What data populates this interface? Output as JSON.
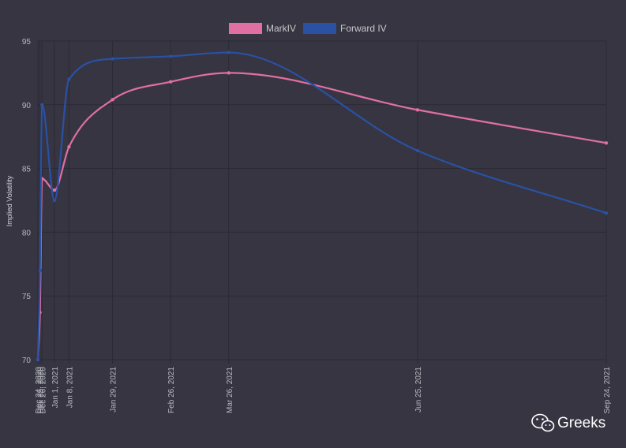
{
  "chart_data": {
    "type": "line",
    "title": "",
    "xlabel": "",
    "ylabel": "Implied Volatility",
    "ylim": [
      70,
      95
    ],
    "yticks": [
      70,
      75,
      80,
      85,
      90,
      95
    ],
    "grid": true,
    "legend_position": "top-center",
    "x": [
      "Dec 24, 2020",
      "Dec 25, 2020",
      "Dec 26, 2020",
      "Jan 1, 2021",
      "Jan 8, 2021",
      "Jan 29, 2021",
      "Feb 26, 2021",
      "Mar 26, 2021",
      "Jun 25, 2021",
      "Sep 24, 2021"
    ],
    "series": [
      {
        "name": "MarkIV",
        "color": "#e06fa4",
        "values": [
          70.0,
          73.7,
          84.2,
          83.3,
          86.7,
          90.4,
          91.8,
          92.5,
          89.6,
          87.0
        ]
      },
      {
        "name": "Forward IV",
        "color": "#2a51a4",
        "values": [
          70.0,
          77.0,
          90.0,
          82.5,
          92.0,
          93.6,
          93.8,
          94.1,
          86.4,
          81.5
        ]
      }
    ]
  },
  "watermark": {
    "text": "Greeks",
    "icon": "wechat-icon"
  },
  "colors": {
    "background": "#363541",
    "grid": "#2b2a33"
  }
}
